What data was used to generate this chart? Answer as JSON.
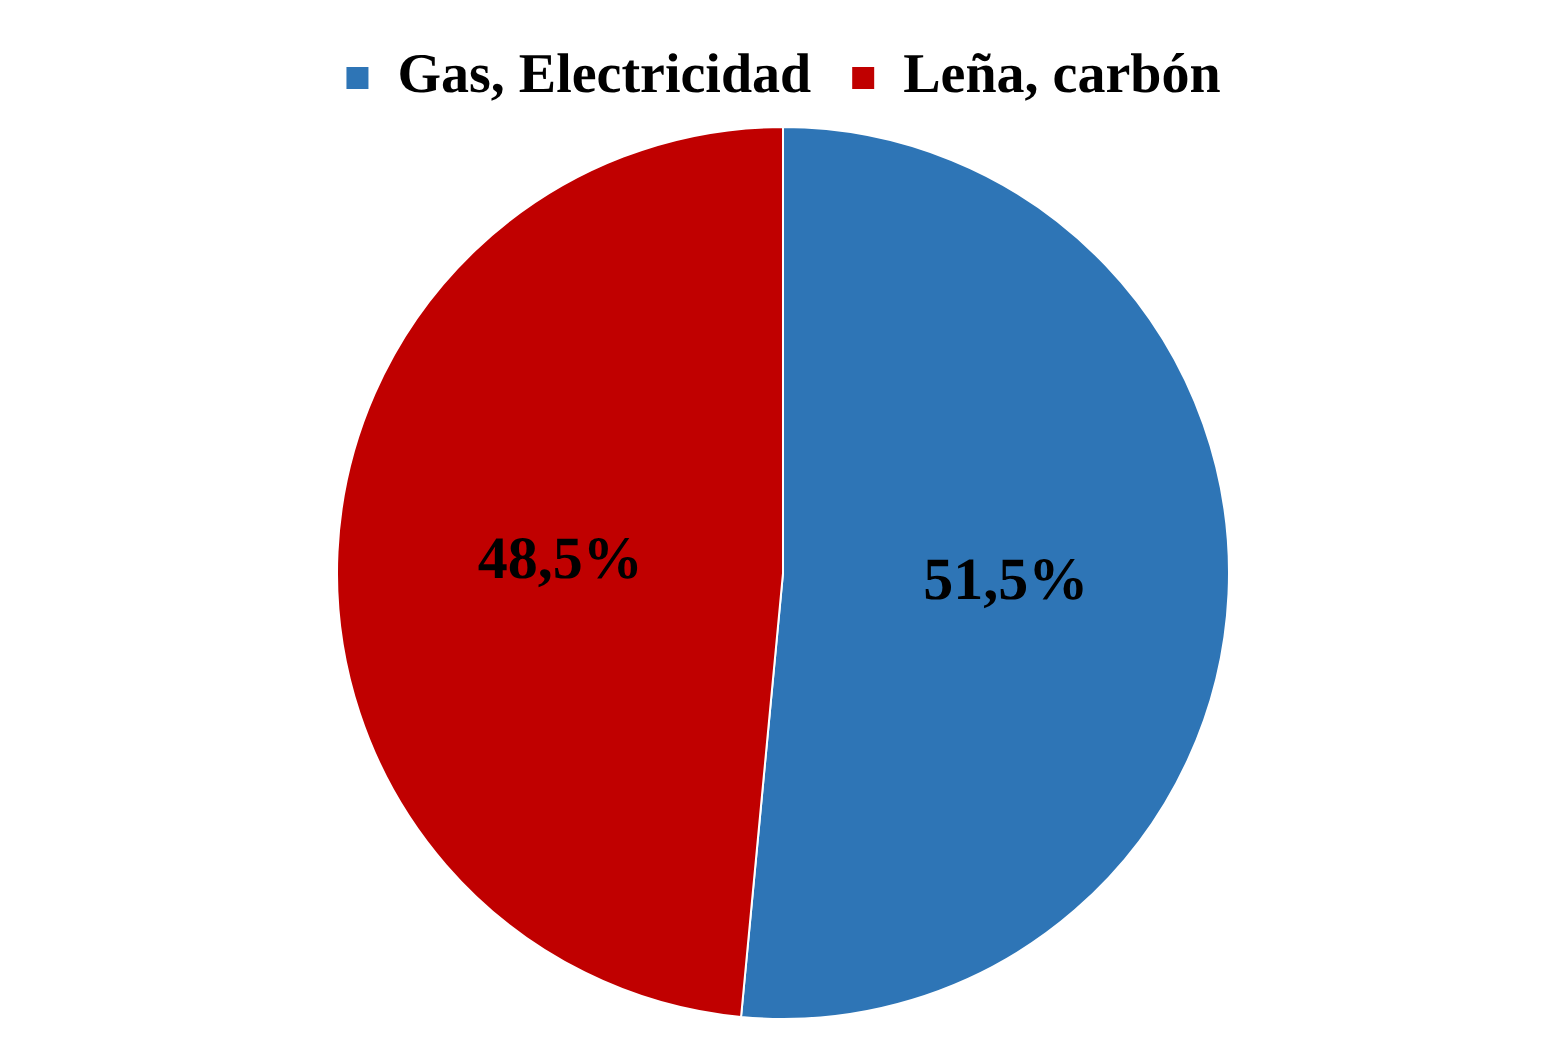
{
  "chart_data": {
    "type": "pie",
    "categories": [
      "Gas, Electricidad",
      "Leña, carbón"
    ],
    "values": [
      51.5,
      48.5
    ],
    "colors": [
      "#2e75b6",
      "#c00000"
    ],
    "value_labels": [
      "51,5%",
      "48,5%"
    ],
    "legend": "top"
  }
}
